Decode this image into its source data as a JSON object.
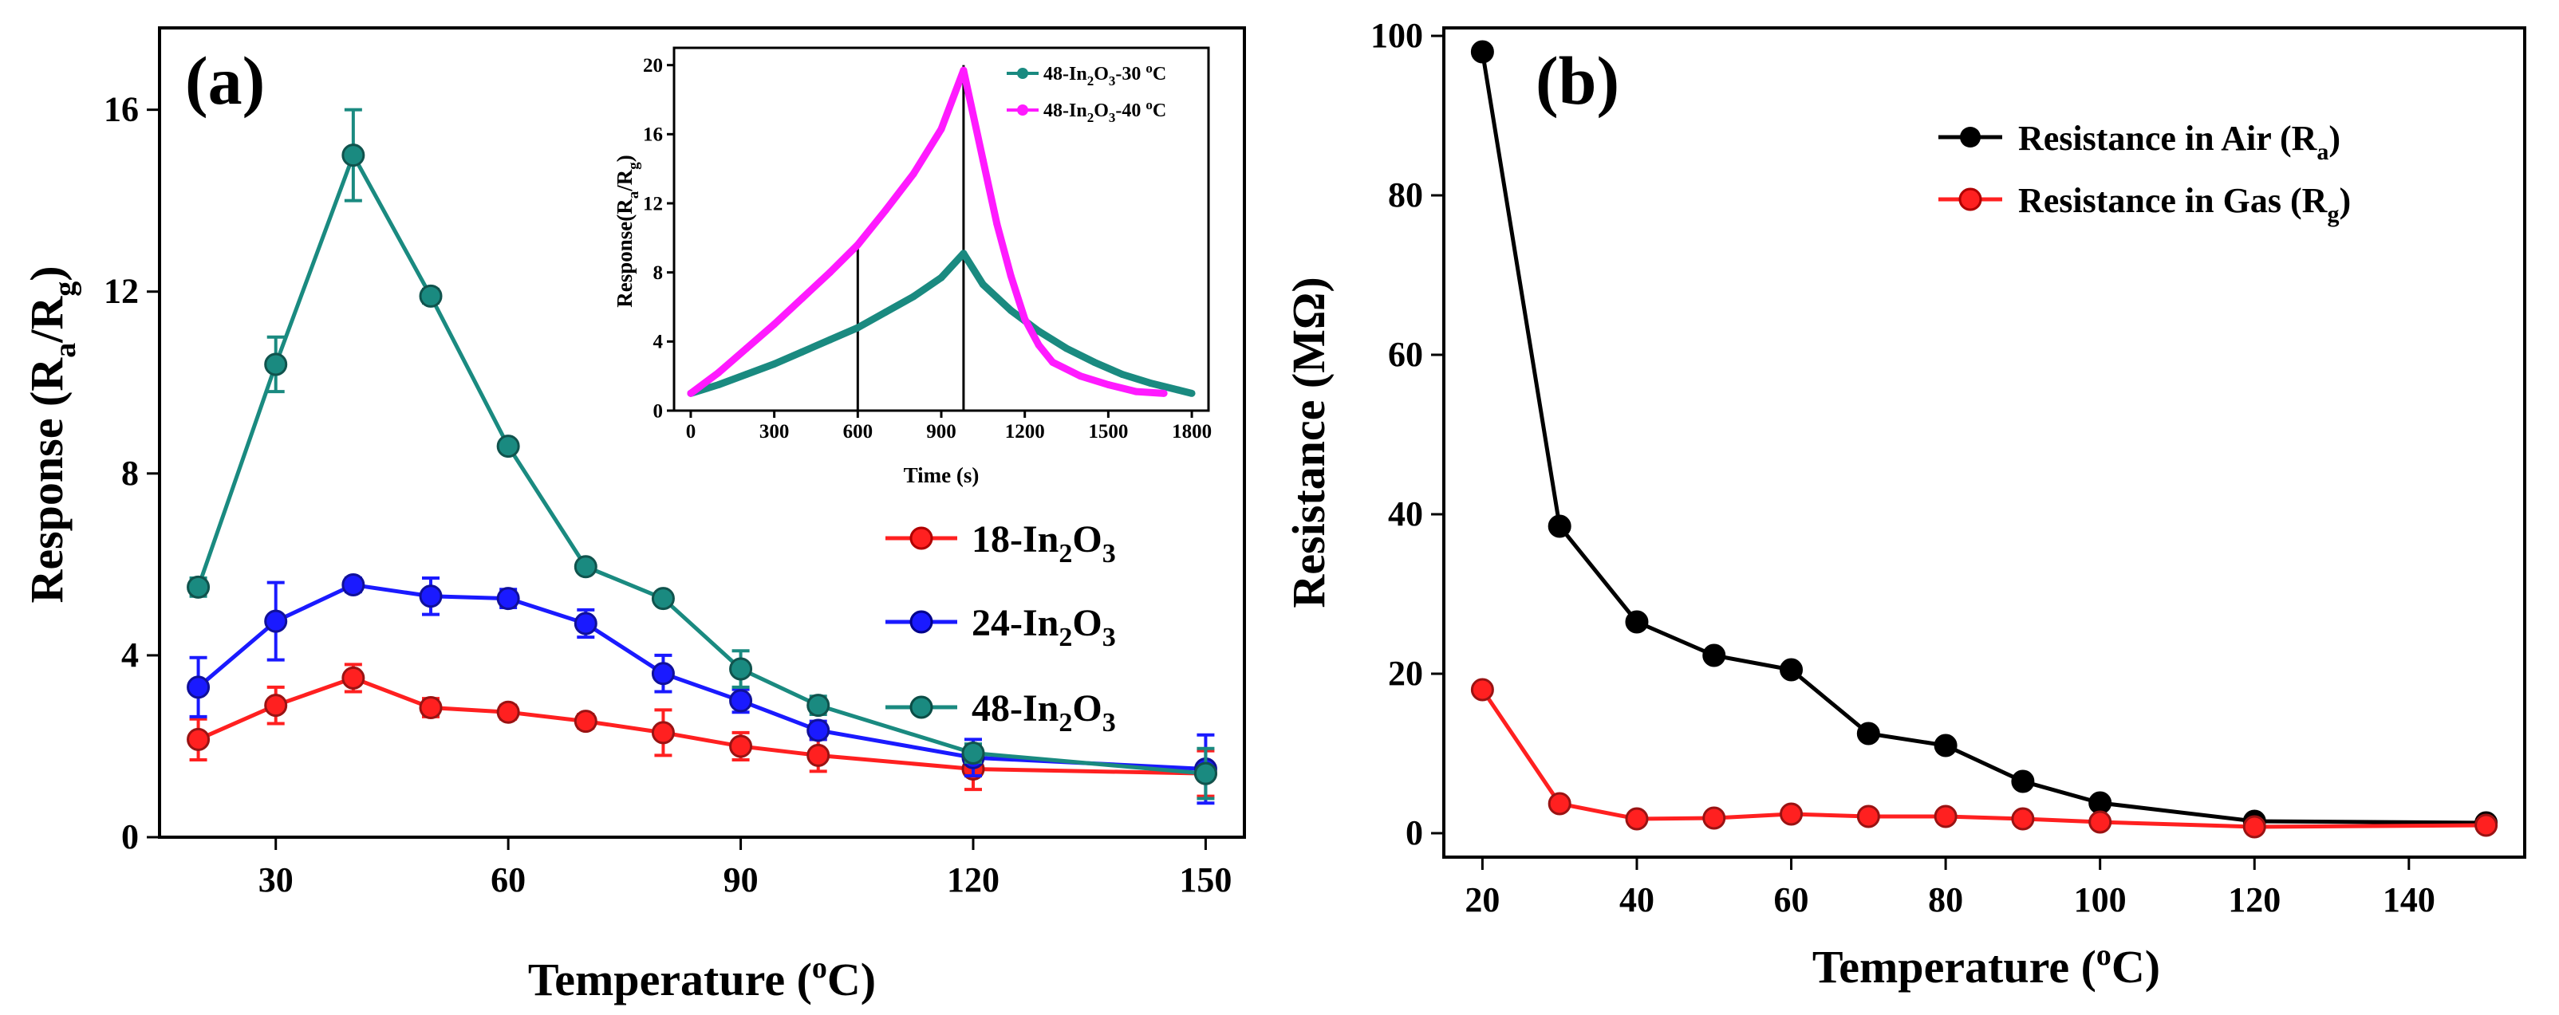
{
  "colors": {
    "s18": "#ff2020",
    "s24": "#1a1aff",
    "s48": "#1a8a80",
    "inset30": "#1a8a80",
    "inset40": "#ff1aff",
    "air": "#000000",
    "gas": "#ff2020"
  },
  "chart_data": [
    {
      "panel": "(a)",
      "type": "line",
      "title": "",
      "xlabel": "Temperature (°C)",
      "xlabel_parts": {
        "pre": "Temperature (",
        "sup": "o",
        "post": "C)"
      },
      "ylabel": "Response (Ra/Rg)",
      "ylabel_parts": {
        "pre": "Response (R",
        "sub1": "a",
        "mid": "/R",
        "sub2": "g",
        "post": ")"
      },
      "xlim": [
        15,
        155
      ],
      "ylim": [
        0,
        17.8
      ],
      "xticks": [
        30,
        60,
        90,
        120,
        150
      ],
      "yticks": [
        0,
        4,
        8,
        12,
        16
      ],
      "x": [
        20,
        30,
        40,
        50,
        60,
        70,
        80,
        90,
        100,
        120,
        150
      ],
      "series": [
        {
          "key": "s18",
          "name": "18-In2O3",
          "label_parts": {
            "pre": "18-In",
            "sub1": "2",
            "mid": "O",
            "sub2": "3"
          },
          "values": [
            2.15,
            2.9,
            3.5,
            2.85,
            2.75,
            2.55,
            2.3,
            2.0,
            1.8,
            1.5,
            1.4
          ],
          "errors": [
            0.45,
            0.4,
            0.3,
            0.2,
            0.15,
            0.15,
            0.5,
            0.3,
            0.35,
            0.45,
            0.5
          ]
        },
        {
          "key": "s24",
          "name": "24-In2O3",
          "label_parts": {
            "pre": "24-In",
            "sub1": "2",
            "mid": "O",
            "sub2": "3"
          },
          "values": [
            3.3,
            4.75,
            5.55,
            5.3,
            5.25,
            4.7,
            3.6,
            3.0,
            2.35,
            1.75,
            1.5
          ],
          "errors": [
            0.65,
            0.85,
            0.15,
            0.4,
            0.2,
            0.3,
            0.4,
            0.25,
            0.2,
            0.4,
            0.75
          ]
        },
        {
          "key": "s48",
          "name": "48-In2O3",
          "label_parts": {
            "pre": "48-In",
            "sub1": "2",
            "mid": "O",
            "sub2": "3"
          },
          "values": [
            5.5,
            10.4,
            15.0,
            11.9,
            8.6,
            5.95,
            5.25,
            3.7,
            2.9,
            1.85,
            1.4
          ],
          "errors": [
            0.2,
            0.6,
            1.0,
            0.15,
            0.1,
            0.1,
            0.1,
            0.4,
            0.2,
            0.2,
            0.55
          ]
        }
      ],
      "legend": "right-middle"
    },
    {
      "panel": "(a) inset",
      "type": "line",
      "xlabel": "Time (s)",
      "ylabel": "Response(Ra/Rg)",
      "ylabel_parts": {
        "pre": "Response(R",
        "sub1": "a",
        "mid": "/R",
        "sub2": "g",
        "post": ")"
      },
      "xlim": [
        -60,
        1860
      ],
      "ylim": [
        0,
        21
      ],
      "xticks": [
        0,
        300,
        600,
        900,
        1200,
        1500,
        1800
      ],
      "yticks": [
        0,
        4,
        8,
        12,
        16,
        20
      ],
      "vlines": [
        600,
        980
      ],
      "series": [
        {
          "key": "inset30",
          "name": "48-In2O3-30°C",
          "label_parts": {
            "pre": "48-In",
            "sub1": "2",
            "mid": "O",
            "sub2": "3",
            "post": "-30 ",
            "sup": "o",
            "end": "C"
          },
          "x": [
            0,
            100,
            200,
            300,
            400,
            500,
            600,
            700,
            800,
            900,
            980,
            1050,
            1150,
            1250,
            1350,
            1450,
            1550,
            1650,
            1750,
            1800
          ],
          "values": [
            1.0,
            1.5,
            2.1,
            2.7,
            3.4,
            4.1,
            4.8,
            5.7,
            6.6,
            7.7,
            9.1,
            7.3,
            5.8,
            4.6,
            3.6,
            2.8,
            2.1,
            1.6,
            1.2,
            1.0
          ]
        },
        {
          "key": "inset40",
          "name": "48-In2O3-40°C",
          "label_parts": {
            "pre": "48-In",
            "sub1": "2",
            "mid": "O",
            "sub2": "3",
            "post": "-40 ",
            "sup": "o",
            "end": "C"
          },
          "x": [
            0,
            100,
            200,
            300,
            400,
            500,
            600,
            700,
            800,
            900,
            980,
            1050,
            1100,
            1150,
            1200,
            1250,
            1300,
            1400,
            1500,
            1600,
            1700
          ],
          "values": [
            1.0,
            2.2,
            3.6,
            5.0,
            6.5,
            8.0,
            9.6,
            11.6,
            13.7,
            16.3,
            19.7,
            14.5,
            10.8,
            7.8,
            5.3,
            3.8,
            2.8,
            2.0,
            1.5,
            1.1,
            1.0
          ]
        }
      ],
      "legend": "top-right"
    },
    {
      "panel": "(b)",
      "type": "line",
      "xlabel": "Temperature (°C)",
      "xlabel_parts": {
        "pre": "Temperature (",
        "sup": "o",
        "post": "C)"
      },
      "ylabel": "Resistance (MΩ)",
      "xlim": [
        15,
        155
      ],
      "ylim": [
        -3,
        101
      ],
      "xticks": [
        20,
        40,
        60,
        80,
        100,
        120,
        140
      ],
      "yticks": [
        0,
        20,
        40,
        60,
        80,
        100
      ],
      "x": [
        20,
        30,
        40,
        50,
        60,
        70,
        80,
        90,
        100,
        120,
        150
      ],
      "series": [
        {
          "key": "air",
          "name": "Resistance in Air (Ra)",
          "label_parts": {
            "pre": "Resistance in Air (R",
            "sub": "a",
            "post": ")"
          },
          "values": [
            98.0,
            38.5,
            26.5,
            22.3,
            20.5,
            12.5,
            11.0,
            6.5,
            3.8,
            1.5,
            1.3
          ]
        },
        {
          "key": "gas",
          "name": "Resistance in Gas (Rg)",
          "label_parts": {
            "pre": "Resistance in Gas (R",
            "sub": "g",
            "post": ")"
          },
          "values": [
            18.0,
            3.7,
            1.8,
            1.9,
            2.4,
            2.1,
            2.1,
            1.8,
            1.4,
            0.8,
            1.0
          ]
        }
      ],
      "legend": "top-right"
    }
  ]
}
